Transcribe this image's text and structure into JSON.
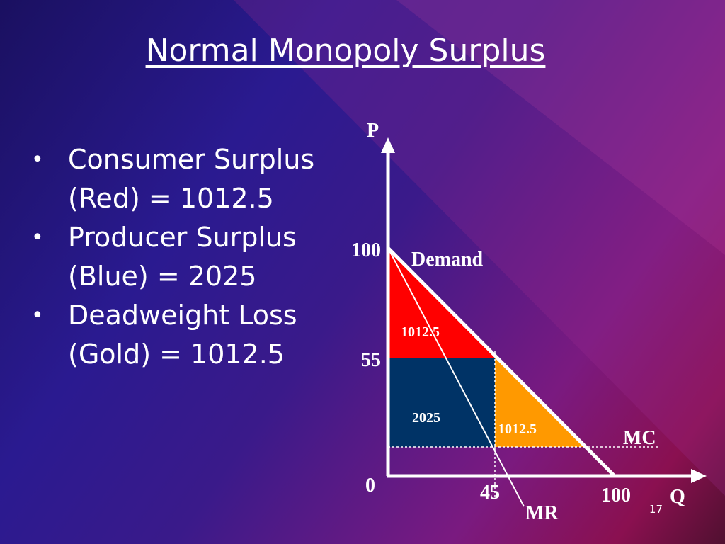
{
  "title": "Normal Monopoly Surplus",
  "bullets": [
    "Consumer Surplus (Red) = 1012.5",
    "Producer Surplus (Blue) = 2025",
    "Deadweight Loss (Gold) = 1012.5"
  ],
  "diagram": {
    "y_axis_label": "P",
    "x_axis_label": "Q",
    "origin_label": "0",
    "y_labels": [
      "100",
      "55"
    ],
    "x_labels": [
      "45",
      "100"
    ],
    "curve_labels": [
      "Demand",
      "MC",
      "MR"
    ],
    "area_labels": [
      "1012.5",
      "2025",
      "1012.5"
    ]
  },
  "slide_number": "17"
}
